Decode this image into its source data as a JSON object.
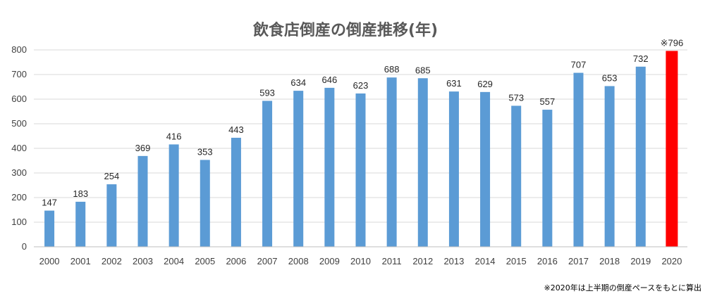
{
  "chart_data": {
    "type": "bar",
    "title": "飲食店倒産の倒産推移(年)",
    "categories": [
      "2000",
      "2001",
      "2002",
      "2003",
      "2004",
      "2005",
      "2006",
      "2007",
      "2008",
      "2009",
      "2010",
      "2011",
      "2012",
      "2013",
      "2014",
      "2015",
      "2016",
      "2017",
      "2018",
      "2019",
      "2020"
    ],
    "values": [
      147,
      183,
      254,
      369,
      416,
      353,
      443,
      593,
      634,
      646,
      623,
      688,
      685,
      631,
      629,
      573,
      557,
      707,
      653,
      732,
      796
    ],
    "data_labels": [
      "147",
      "183",
      "254",
      "369",
      "416",
      "353",
      "443",
      "593",
      "634",
      "646",
      "623",
      "688",
      "685",
      "631",
      "629",
      "573",
      "557",
      "707",
      "653",
      "732",
      "※796"
    ],
    "ylim": [
      0,
      800
    ],
    "yticks": [
      0,
      100,
      200,
      300,
      400,
      500,
      600,
      700,
      800
    ],
    "xlabel": "",
    "ylabel": "",
    "grid": true,
    "legend": "none",
    "colors": {
      "bar": "#5B9BD5",
      "highlight": "#FF0000",
      "grid": "#D9D9D9",
      "axis": "#BFBFBF"
    },
    "highlight_category": "2020",
    "footnote": "※2020年は上半期の倒産ペースをもとに算出"
  }
}
